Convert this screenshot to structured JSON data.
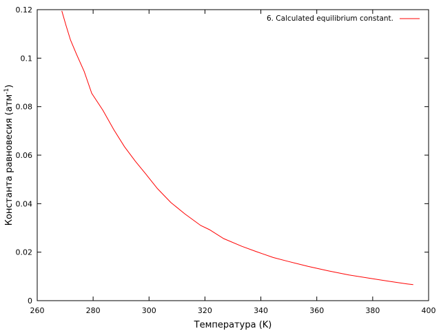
{
  "chart_data": {
    "type": "line",
    "title": "",
    "xlabel": "Температура (K)",
    "ylabel": {
      "prefix": "Константа равновесия (атм",
      "sup": "-1",
      "suffix": ")"
    },
    "xlim": [
      260,
      400
    ],
    "ylim": [
      0,
      0.12
    ],
    "xticks": [
      260,
      280,
      300,
      320,
      340,
      360,
      380,
      400
    ],
    "yticks": [
      0,
      0.02,
      0.04,
      0.06,
      0.08,
      0.1,
      0.12
    ],
    "xtick_labels": [
      "260",
      "280",
      "300",
      "320",
      "340",
      "360",
      "380",
      "400"
    ],
    "ytick_labels": [
      "0",
      "0.02",
      "0.04",
      "0.06",
      "0.08",
      "0.1",
      "0.12"
    ],
    "grid": false,
    "legend_position": "top-right",
    "series": [
      {
        "name": "6. Calculated equilibrium constant.",
        "color": "#ff0000",
        "x": [
          268.8,
          270.3,
          271.9,
          274.1,
          276.8,
          279.5,
          283.5,
          287.4,
          291.2,
          295.1,
          299.0,
          303.0,
          307.8,
          312.8,
          318.5,
          321.6,
          326.7,
          333.2,
          338.2,
          344.4,
          349.4,
          357.0,
          364.1,
          371.5,
          378.5,
          385.8,
          392.3,
          394.5
        ],
        "y": [
          0.1195,
          0.1135,
          0.1075,
          0.1015,
          0.0945,
          0.0855,
          0.0785,
          0.0705,
          0.0635,
          0.0575,
          0.052,
          0.0462,
          0.0405,
          0.0358,
          0.031,
          0.0293,
          0.0256,
          0.0224,
          0.0203,
          0.0178,
          0.0163,
          0.0141,
          0.0123,
          0.0106,
          0.0093,
          0.008,
          0.0069,
          0.0066
        ]
      }
    ]
  }
}
